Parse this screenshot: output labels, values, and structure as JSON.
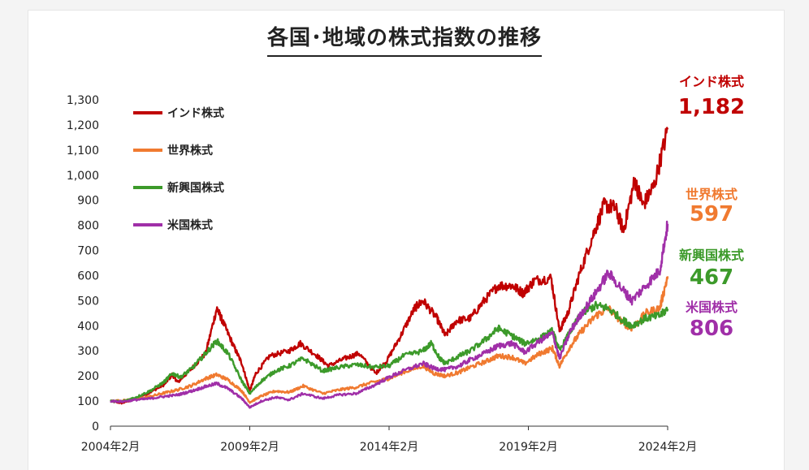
{
  "chart_data": {
    "type": "line",
    "title": "各国･地域の株式指数の推移",
    "xlabel": "",
    "ylabel": "",
    "ylim": [
      0,
      1300
    ],
    "yticks": [
      0,
      100,
      200,
      300,
      400,
      500,
      600,
      700,
      800,
      900,
      1000,
      1100,
      1200,
      1300
    ],
    "ytick_labels": [
      "0",
      "100",
      "200",
      "300",
      "400",
      "500",
      "600",
      "700",
      "800",
      "900",
      "1,000",
      "1,100",
      "1,200",
      "1,300"
    ],
    "xticks": [
      2004.083,
      2009.083,
      2014.083,
      2019.083,
      2024.083
    ],
    "xtick_labels": [
      "2004年2月",
      "2009年2月",
      "2014年2月",
      "2019年2月",
      "2024年2月"
    ],
    "xlim": [
      2004.083,
      2024.083
    ],
    "grid": false,
    "legend_position": "top-left",
    "series": [
      {
        "name": "インド株式",
        "color": "#c00000",
        "end_label": "1,182",
        "points": [
          [
            2004.083,
            100
          ],
          [
            2004.5,
            92
          ],
          [
            2005.0,
            110
          ],
          [
            2005.5,
            135
          ],
          [
            2006.0,
            165
          ],
          [
            2006.3,
            205
          ],
          [
            2006.5,
            175
          ],
          [
            2007.0,
            230
          ],
          [
            2007.5,
            290
          ],
          [
            2007.9,
            470
          ],
          [
            2008.1,
            420
          ],
          [
            2008.5,
            320
          ],
          [
            2008.8,
            250
          ],
          [
            2009.083,
            140
          ],
          [
            2009.3,
            210
          ],
          [
            2009.8,
            280
          ],
          [
            2010.5,
            300
          ],
          [
            2010.9,
            330
          ],
          [
            2011.5,
            280
          ],
          [
            2011.9,
            240
          ],
          [
            2012.5,
            270
          ],
          [
            2013.0,
            290
          ],
          [
            2013.6,
            210
          ],
          [
            2014.0,
            260
          ],
          [
            2014.5,
            360
          ],
          [
            2015.0,
            470
          ],
          [
            2015.3,
            500
          ],
          [
            2015.8,
            430
          ],
          [
            2016.1,
            360
          ],
          [
            2016.5,
            420
          ],
          [
            2017.0,
            430
          ],
          [
            2017.5,
            500
          ],
          [
            2018.0,
            560
          ],
          [
            2018.5,
            560
          ],
          [
            2018.9,
            530
          ],
          [
            2019.3,
            580
          ],
          [
            2019.9,
            590
          ],
          [
            2020.2,
            380
          ],
          [
            2020.5,
            450
          ],
          [
            2020.9,
            600
          ],
          [
            2021.4,
            760
          ],
          [
            2021.8,
            880
          ],
          [
            2022.2,
            870
          ],
          [
            2022.5,
            780
          ],
          [
            2022.9,
            980
          ],
          [
            2023.2,
            880
          ],
          [
            2023.6,
            960
          ],
          [
            2024.083,
            1182
          ]
        ]
      },
      {
        "name": "世界株式",
        "color": "#f07a30",
        "end_label": "597",
        "points": [
          [
            2004.083,
            100
          ],
          [
            2004.5,
            102
          ],
          [
            2005.0,
            108
          ],
          [
            2005.5,
            118
          ],
          [
            2006.0,
            132
          ],
          [
            2006.5,
            145
          ],
          [
            2007.0,
            162
          ],
          [
            2007.5,
            190
          ],
          [
            2007.9,
            205
          ],
          [
            2008.3,
            185
          ],
          [
            2008.8,
            140
          ],
          [
            2009.083,
            95
          ],
          [
            2009.5,
            120
          ],
          [
            2010.0,
            140
          ],
          [
            2010.5,
            135
          ],
          [
            2011.0,
            160
          ],
          [
            2011.7,
            130
          ],
          [
            2012.3,
            145
          ],
          [
            2012.9,
            155
          ],
          [
            2013.5,
            175
          ],
          [
            2014.083,
            190
          ],
          [
            2014.6,
            215
          ],
          [
            2015.3,
            240
          ],
          [
            2015.7,
            210
          ],
          [
            2016.1,
            200
          ],
          [
            2016.6,
            215
          ],
          [
            2017.0,
            235
          ],
          [
            2017.6,
            260
          ],
          [
            2018.0,
            280
          ],
          [
            2018.5,
            275
          ],
          [
            2018.95,
            250
          ],
          [
            2019.5,
            290
          ],
          [
            2019.95,
            310
          ],
          [
            2020.2,
            240
          ],
          [
            2020.6,
            320
          ],
          [
            2021.0,
            380
          ],
          [
            2021.5,
            440
          ],
          [
            2021.95,
            470
          ],
          [
            2022.5,
            410
          ],
          [
            2022.8,
            390
          ],
          [
            2023.3,
            450
          ],
          [
            2023.8,
            470
          ],
          [
            2024.083,
            597
          ]
        ]
      },
      {
        "name": "新興国株式",
        "color": "#3c9a2a",
        "end_label": "467",
        "points": [
          [
            2004.083,
            100
          ],
          [
            2004.5,
            98
          ],
          [
            2005.0,
            115
          ],
          [
            2005.5,
            140
          ],
          [
            2006.0,
            175
          ],
          [
            2006.3,
            210
          ],
          [
            2006.6,
            195
          ],
          [
            2007.0,
            230
          ],
          [
            2007.5,
            290
          ],
          [
            2007.9,
            340
          ],
          [
            2008.3,
            290
          ],
          [
            2008.8,
            180
          ],
          [
            2009.083,
            130
          ],
          [
            2009.5,
            180
          ],
          [
            2010.0,
            220
          ],
          [
            2010.5,
            240
          ],
          [
            2011.0,
            270
          ],
          [
            2011.7,
            220
          ],
          [
            2012.3,
            235
          ],
          [
            2012.9,
            245
          ],
          [
            2013.5,
            235
          ],
          [
            2014.083,
            240
          ],
          [
            2014.6,
            280
          ],
          [
            2015.3,
            300
          ],
          [
            2015.6,
            330
          ],
          [
            2015.9,
            270
          ],
          [
            2016.1,
            250
          ],
          [
            2016.6,
            280
          ],
          [
            2017.0,
            300
          ],
          [
            2017.6,
            350
          ],
          [
            2018.0,
            390
          ],
          [
            2018.5,
            360
          ],
          [
            2018.95,
            330
          ],
          [
            2019.5,
            350
          ],
          [
            2019.95,
            380
          ],
          [
            2020.2,
            300
          ],
          [
            2020.6,
            380
          ],
          [
            2021.0,
            450
          ],
          [
            2021.5,
            480
          ],
          [
            2021.95,
            470
          ],
          [
            2022.5,
            420
          ],
          [
            2022.8,
            400
          ],
          [
            2023.3,
            430
          ],
          [
            2023.8,
            440
          ],
          [
            2024.083,
            467
          ]
        ]
      },
      {
        "name": "米国株式",
        "color": "#a02fa8",
        "end_label": "806",
        "points": [
          [
            2004.083,
            100
          ],
          [
            2004.5,
            98
          ],
          [
            2005.0,
            105
          ],
          [
            2005.5,
            110
          ],
          [
            2006.0,
            118
          ],
          [
            2006.5,
            125
          ],
          [
            2007.0,
            140
          ],
          [
            2007.5,
            158
          ],
          [
            2007.9,
            170
          ],
          [
            2008.3,
            150
          ],
          [
            2008.8,
            110
          ],
          [
            2009.083,
            75
          ],
          [
            2009.5,
            100
          ],
          [
            2010.0,
            115
          ],
          [
            2010.5,
            105
          ],
          [
            2011.0,
            130
          ],
          [
            2011.7,
            110
          ],
          [
            2012.3,
            125
          ],
          [
            2012.9,
            130
          ],
          [
            2013.5,
            160
          ],
          [
            2014.083,
            195
          ],
          [
            2014.6,
            220
          ],
          [
            2015.3,
            250
          ],
          [
            2015.7,
            230
          ],
          [
            2016.1,
            225
          ],
          [
            2016.6,
            240
          ],
          [
            2017.0,
            265
          ],
          [
            2017.6,
            295
          ],
          [
            2018.0,
            320
          ],
          [
            2018.5,
            330
          ],
          [
            2018.95,
            295
          ],
          [
            2019.5,
            340
          ],
          [
            2019.95,
            370
          ],
          [
            2020.2,
            270
          ],
          [
            2020.6,
            380
          ],
          [
            2021.0,
            450
          ],
          [
            2021.5,
            530
          ],
          [
            2021.95,
            610
          ],
          [
            2022.5,
            540
          ],
          [
            2022.8,
            500
          ],
          [
            2023.3,
            560
          ],
          [
            2023.8,
            620
          ],
          [
            2024.083,
            806
          ]
        ]
      }
    ]
  }
}
